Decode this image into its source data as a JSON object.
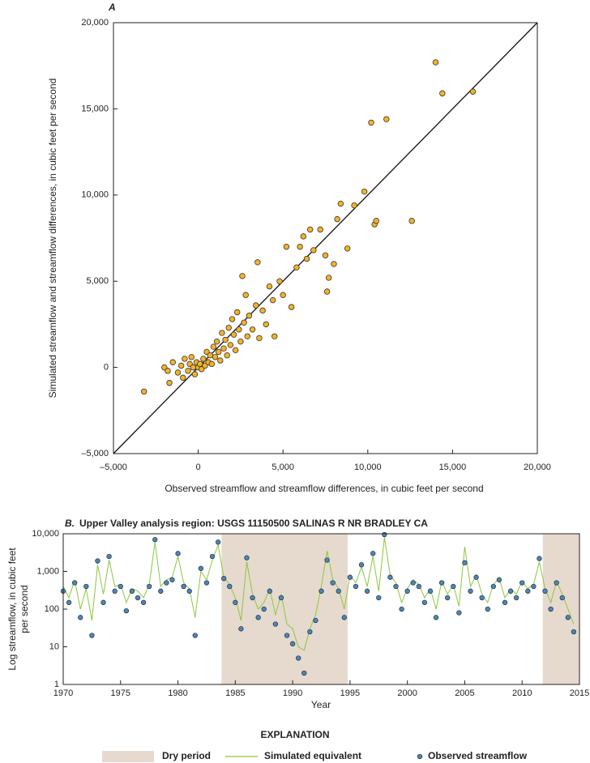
{
  "chart_data": [
    {
      "type": "scatter",
      "label": "A",
      "xlabel": "Observed streamflow and streamflow differences, in cubic feet per second",
      "ylabel": "Simulated streamflow and streamflow differences, in cubic feet per second",
      "xlim": [
        -5000,
        20000
      ],
      "ylim": [
        -5000,
        20000
      ],
      "xticks": [
        {
          "value": -5000,
          "label": "–5,000"
        },
        0,
        {
          "value": 5000,
          "label": "5,000"
        },
        {
          "value": 10000,
          "label": "10,000"
        },
        {
          "value": 15000,
          "label": "15,000"
        },
        {
          "value": 20000,
          "label": "20,000"
        }
      ],
      "yticks": [
        {
          "value": -5000,
          "label": "–5,000"
        },
        0,
        {
          "value": 5000,
          "label": "5,000"
        },
        {
          "value": 10000,
          "label": "10,000"
        },
        {
          "value": 15000,
          "label": "15,000"
        },
        {
          "value": 20000,
          "label": "20,000"
        }
      ],
      "color": "#f5b324",
      "x": [
        -3200,
        -2000,
        -1800,
        -1700,
        -1500,
        -1200,
        -1000,
        -900,
        -800,
        -600,
        -500,
        -400,
        -300,
        -200,
        -100,
        0,
        100,
        200,
        300,
        400,
        500,
        600,
        700,
        800,
        900,
        1000,
        1100,
        1200,
        1300,
        1400,
        1500,
        1600,
        1700,
        1800,
        1900,
        2000,
        2100,
        2200,
        2300,
        2400,
        2500,
        2600,
        2700,
        2800,
        2900,
        3000,
        3200,
        3400,
        3500,
        3600,
        3800,
        4000,
        4200,
        4400,
        4500,
        4800,
        5000,
        5200,
        5500,
        5800,
        6000,
        6200,
        6400,
        6600,
        6800,
        7200,
        7500,
        7600,
        7700,
        8000,
        8200,
        8400,
        8800,
        9200,
        9800,
        10200,
        10400,
        10500,
        11100,
        12600,
        14000,
        14400,
        16200
      ],
      "y": [
        -1400,
        0,
        -200,
        -900,
        300,
        -300,
        100,
        -600,
        500,
        -200,
        200,
        600,
        0,
        -400,
        300,
        0,
        200,
        -100,
        500,
        100,
        900,
        300,
        700,
        200,
        1200,
        600,
        1500,
        900,
        400,
        2000,
        1100,
        1600,
        700,
        2300,
        1300,
        2800,
        1900,
        1000,
        3200,
        2200,
        1500,
        5300,
        2600,
        4200,
        1800,
        3000,
        2200,
        3600,
        6100,
        1700,
        3300,
        2500,
        4700,
        3900,
        1800,
        5000,
        4200,
        7000,
        3500,
        5800,
        7000,
        7600,
        6300,
        8000,
        6800,
        8000,
        6500,
        4400,
        5200,
        6000,
        8600,
        9500,
        6900,
        9400,
        10200,
        14200,
        8300,
        8500,
        14400,
        8500,
        17700,
        15900,
        16000
      ]
    },
    {
      "type": "line",
      "label": "B.",
      "title": "Upper Valley analysis region:  USGS 11150500 SALINAS R NR BRADLEY CA",
      "xlabel": "Year",
      "ylabel": [
        "Log streamflow, in cubic feet",
        "per second"
      ],
      "log_scale": true,
      "xlim": [
        1970,
        2015
      ],
      "ylim": [
        1,
        10000
      ],
      "xticks": [
        1970,
        1975,
        1980,
        1985,
        1990,
        1995,
        2000,
        2005,
        2010,
        2015
      ],
      "yticks": [
        1,
        10,
        100,
        {
          "value": 1000,
          "label": "1,000"
        },
        {
          "value": 10000,
          "label": "10,000"
        }
      ],
      "shaded_periods": {
        "name": "Dry period",
        "color": "#e6dace",
        "ranges": [
          [
            1983.8,
            1994.8
          ],
          [
            2011.8,
            2015
          ]
        ]
      },
      "legend_title": "EXPLANATION",
      "x": [
        1970,
        1970.5,
        1971,
        1971.5,
        1972,
        1972.5,
        1973,
        1973.5,
        1974,
        1974.5,
        1975,
        1975.5,
        1976,
        1976.5,
        1977,
        1977.5,
        1978,
        1978.5,
        1979,
        1979.5,
        1980,
        1980.5,
        1981,
        1981.5,
        1982,
        1982.5,
        1983,
        1983.5,
        1984,
        1984.5,
        1985,
        1985.5,
        1986,
        1986.5,
        1987,
        1987.5,
        1988,
        1988.5,
        1989,
        1989.5,
        1990,
        1990.5,
        1991,
        1991.5,
        1992,
        1992.5,
        1993,
        1993.5,
        1994,
        1994.5,
        1995,
        1995.5,
        1996,
        1996.5,
        1997,
        1997.5,
        1998,
        1998.5,
        1999,
        1999.5,
        2000,
        2000.5,
        2001,
        2001.5,
        2002,
        2002.5,
        2003,
        2003.5,
        2004,
        2004.5,
        2005,
        2005.5,
        2006,
        2006.5,
        2007,
        2007.5,
        2008,
        2008.5,
        2009,
        2009.5,
        2010,
        2010.5,
        2011,
        2011.5,
        2012,
        2012.5,
        2013,
        2013.5,
        2014,
        2014.5
      ],
      "series": [
        {
          "name": "Simulated equivalent",
          "kind": "line",
          "color": "#8cc63f",
          "values": [
            400,
            200,
            600,
            100,
            350,
            50,
            1500,
            250,
            2000,
            400,
            450,
            150,
            350,
            300,
            200,
            450,
            6000,
            400,
            600,
            700,
            2500,
            500,
            350,
            60,
            1000,
            600,
            2000,
            5000,
            700,
            450,
            200,
            50,
            1800,
            250,
            100,
            150,
            350,
            70,
            250,
            40,
            30,
            10,
            8,
            30,
            70,
            400,
            3500,
            600,
            350,
            100,
            800,
            500,
            1300,
            400,
            2500,
            300,
            8000,
            800,
            500,
            150,
            350,
            600,
            450,
            200,
            350,
            100,
            550,
            250,
            450,
            120,
            4500,
            400,
            800,
            250,
            150,
            450,
            650,
            200,
            350,
            250,
            550,
            350,
            450,
            1800,
            350,
            150,
            550,
            250,
            100,
            40
          ]
        },
        {
          "name": "Observed streamflow",
          "kind": "scatter",
          "color": "#4f86b8",
          "values": [
            300,
            150,
            500,
            60,
            400,
            20,
            1900,
            150,
            2500,
            300,
            400,
            90,
            300,
            200,
            150,
            400,
            7000,
            300,
            500,
            600,
            3000,
            400,
            300,
            20,
            1200,
            500,
            2500,
            6000,
            650,
            400,
            150,
            30,
            2300,
            200,
            60,
            100,
            300,
            40,
            200,
            20,
            12,
            5,
            2,
            25,
            50,
            300,
            2000,
            500,
            300,
            60,
            700,
            400,
            1500,
            300,
            3000,
            200,
            9500,
            700,
            400,
            100,
            300,
            500,
            400,
            150,
            300,
            60,
            500,
            200,
            400,
            80,
            1700,
            300,
            700,
            200,
            100,
            400,
            600,
            150,
            300,
            200,
            500,
            300,
            400,
            2200,
            300,
            100,
            500,
            200,
            60,
            25
          ]
        }
      ]
    }
  ]
}
